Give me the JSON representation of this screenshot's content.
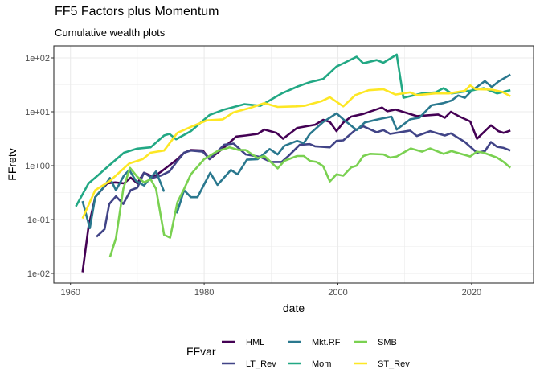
{
  "chart_data": {
    "type": "line",
    "title": "FF5 Factors plus Momentum",
    "subtitle": "Cumulative wealth plots",
    "xlabel": "date",
    "ylabel": "FFretv",
    "x_scale": "date",
    "y_scale": "log10",
    "xlim": [
      1957,
      2029.5
    ],
    "ylim": [
      0.0078,
      130
    ],
    "x_ticks": [
      1960,
      1980,
      2000,
      2020
    ],
    "x_tick_labels": [
      "1960",
      "1980",
      "2000",
      "2020"
    ],
    "y_ticks": [
      0.01,
      0.1,
      1,
      10,
      100
    ],
    "y_tick_labels": [
      "1e-02",
      "1e-01",
      "1e+00",
      "1e+01",
      "1e+02"
    ],
    "grid": true,
    "legend": {
      "title": "FFvar",
      "placement": "bottom"
    },
    "series": [
      {
        "name": "HML",
        "color": "#440154",
        "points": [
          [
            1961.8,
            0.0105
          ],
          [
            1962.7,
            0.074
          ],
          [
            1963.7,
            0.26
          ],
          [
            1965.5,
            0.47
          ],
          [
            1966.7,
            0.49
          ],
          [
            1968,
            0.47
          ],
          [
            1969,
            0.6
          ],
          [
            1970,
            0.47
          ],
          [
            1971,
            0.74
          ],
          [
            1972.4,
            0.62
          ],
          [
            1973.6,
            0.78
          ],
          [
            1974.4,
            0.93
          ],
          [
            1976,
            1.32
          ],
          [
            1977,
            1.74
          ],
          [
            1978,
            1.95
          ],
          [
            1979.8,
            1.91
          ],
          [
            1980.8,
            1.32
          ],
          [
            1982.8,
            2.09
          ],
          [
            1984.8,
            3.47
          ],
          [
            1986.2,
            3.63
          ],
          [
            1988,
            3.89
          ],
          [
            1989,
            4.68
          ],
          [
            1990.8,
            4.07
          ],
          [
            1991.8,
            3.16
          ],
          [
            1993.9,
            5.01
          ],
          [
            1996.6,
            5.75
          ],
          [
            1997.8,
            7.08
          ],
          [
            1998.8,
            6.46
          ],
          [
            1999.8,
            4.37
          ],
          [
            2000.8,
            6.31
          ],
          [
            2002,
            8.13
          ],
          [
            2003.8,
            9.12
          ],
          [
            2006.6,
            12.0
          ],
          [
            2007.4,
            10.2
          ],
          [
            2008.6,
            11.0
          ],
          [
            2011.8,
            8.32
          ],
          [
            2015,
            8.91
          ],
          [
            2016,
            7.76
          ],
          [
            2016.9,
            10
          ],
          [
            2018.2,
            8.13
          ],
          [
            2019.8,
            6.61
          ],
          [
            2020.8,
            3.16
          ],
          [
            2022.9,
            5.62
          ],
          [
            2024,
            4.37
          ],
          [
            2024.8,
            4.07
          ],
          [
            2025.8,
            4.47
          ]
        ]
      },
      {
        "name": "LT_Rev",
        "color": "#414487",
        "points": [
          [
            1963.9,
            0.048
          ],
          [
            1965.1,
            0.066
          ],
          [
            1965.8,
            0.195
          ],
          [
            1966.8,
            0.27
          ],
          [
            1967.9,
            0.195
          ],
          [
            1969,
            0.35
          ],
          [
            1970,
            0.39
          ],
          [
            1971,
            0.74
          ],
          [
            1972.2,
            0.59
          ],
          [
            1973.6,
            0.66
          ],
          [
            1974.8,
            0.78
          ],
          [
            1976,
            1.23
          ],
          [
            1977,
            1.74
          ],
          [
            1978,
            1.91
          ],
          [
            1979.8,
            1.82
          ],
          [
            1980.8,
            1.32
          ],
          [
            1983,
            2.45
          ],
          [
            1984.4,
            2.57
          ],
          [
            1986.2,
            1.62
          ],
          [
            1988.4,
            1.45
          ],
          [
            1990,
            1.17
          ],
          [
            1991.6,
            1.17
          ],
          [
            1992.7,
            1.55
          ],
          [
            1994.3,
            2.45
          ],
          [
            1995.8,
            2.51
          ],
          [
            1996.6,
            2.29
          ],
          [
            1998.8,
            2.19
          ],
          [
            1999.8,
            2.88
          ],
          [
            2000.8,
            2.95
          ],
          [
            2002.6,
            4.57
          ],
          [
            2003.8,
            5.37
          ],
          [
            2005.8,
            4.17
          ],
          [
            2006.8,
            4.57
          ],
          [
            2007.8,
            3.89
          ],
          [
            2010.8,
            4.47
          ],
          [
            2011.8,
            3.55
          ],
          [
            2013.8,
            4.37
          ],
          [
            2016,
            3.63
          ],
          [
            2016.9,
            3.98
          ],
          [
            2018.2,
            3.16
          ],
          [
            2019,
            2.75
          ],
          [
            2020.8,
            1.74
          ],
          [
            2022,
            1.86
          ],
          [
            2022.9,
            2.75
          ],
          [
            2023.8,
            2.24
          ],
          [
            2024.8,
            2.14
          ],
          [
            2025.8,
            1.91
          ]
        ]
      },
      {
        "name": "Mkt.RF",
        "color": "#2A788E",
        "points": [
          [
            1961.8,
            0.22
          ],
          [
            1962.9,
            0.069
          ],
          [
            1963.7,
            0.26
          ],
          [
            1964.9,
            0.39
          ],
          [
            1965.9,
            0.59
          ],
          [
            1966.8,
            0.35
          ],
          [
            1968,
            0.66
          ],
          [
            1968.8,
            0.83
          ],
          [
            1969.8,
            0.52
          ],
          [
            1971,
            0.43
          ],
          [
            1972.8,
            0.78
          ],
          [
            1974,
            0.33
          ],
          [
            null,
            null
          ],
          [
            1975.9,
            0.13
          ],
          [
            1977,
            0.35
          ],
          [
            1978,
            0.26
          ],
          [
            1979,
            0.26
          ],
          [
            1980.9,
            0.74
          ],
          [
            1982,
            0.44
          ],
          [
            1984,
            0.83
          ],
          [
            1985,
            0.69
          ],
          [
            1986.4,
            1.29
          ],
          [
            1988,
            1.32
          ],
          [
            1989.8,
            2.04
          ],
          [
            1991,
            1.62
          ],
          [
            1992,
            2.34
          ],
          [
            1993.9,
            2.88
          ],
          [
            1994.9,
            2.63
          ],
          [
            1995.8,
            3.89
          ],
          [
            1997.8,
            6.46
          ],
          [
            1999.8,
            9.33
          ],
          [
            2000.8,
            7.24
          ],
          [
            2002.8,
            4.57
          ],
          [
            2004,
            6.31
          ],
          [
            2006,
            7.24
          ],
          [
            2008,
            8.13
          ],
          [
            2008.8,
            4.68
          ],
          [
            2010.8,
            7.24
          ],
          [
            2012.2,
            7.76
          ],
          [
            2014,
            13.2
          ],
          [
            2015.8,
            14.5
          ],
          [
            2017,
            16.2
          ],
          [
            2018,
            20.0
          ],
          [
            2019,
            18.2
          ],
          [
            2020,
            24.5
          ],
          [
            2022,
            37.2
          ],
          [
            2023,
            28.8
          ],
          [
            2024,
            36.3
          ],
          [
            2025.8,
            49.0
          ]
        ]
      },
      {
        "name": "Mom",
        "color": "#22A884",
        "points": [
          [
            1960.8,
            0.175
          ],
          [
            1962.7,
            0.47
          ],
          [
            1964.1,
            0.66
          ],
          [
            1965.9,
            1.04
          ],
          [
            1968,
            1.74
          ],
          [
            1970,
            2.07
          ],
          [
            1972,
            2.19
          ],
          [
            1974,
            3.63
          ],
          [
            1974.8,
            3.89
          ],
          [
            1975.8,
            3.09
          ],
          [
            1978,
            4.37
          ],
          [
            1980.8,
            8.71
          ],
          [
            1983,
            11.0
          ],
          [
            1986,
            13.8
          ],
          [
            1988.4,
            12.9
          ],
          [
            1991.6,
            21.9
          ],
          [
            1994,
            29.5
          ],
          [
            1995.8,
            35.5
          ],
          [
            1997.8,
            40.7
          ],
          [
            1999.8,
            69.2
          ],
          [
            2001,
            81.3
          ],
          [
            2002.8,
            105
          ],
          [
            2003.8,
            79.4
          ],
          [
            2005.8,
            91.2
          ],
          [
            2006.8,
            81.3
          ],
          [
            2008.8,
            115
          ],
          [
            2009.8,
            18.2
          ],
          [
            2012.6,
            21.9
          ],
          [
            2014.6,
            22.9
          ],
          [
            2015.8,
            27.5
          ],
          [
            2017,
            21.9
          ],
          [
            2019.8,
            24.5
          ],
          [
            2021.8,
            27.5
          ],
          [
            2023.8,
            21.9
          ],
          [
            2025.8,
            25.1
          ]
        ]
      },
      {
        "name": "SMB",
        "color": "#7AD151",
        "points": [
          [
            1965.9,
            0.02
          ],
          [
            1966.8,
            0.045
          ],
          [
            1967.9,
            0.37
          ],
          [
            1968.9,
            0.91
          ],
          [
            1970,
            0.62
          ],
          [
            1971,
            0.49
          ],
          [
            1972,
            0.56
          ],
          [
            1972.8,
            0.37
          ],
          [
            1974,
            0.052
          ],
          [
            1974.9,
            0.046
          ],
          [
            1976,
            0.21
          ],
          [
            1977,
            0.37
          ],
          [
            1978,
            0.69
          ],
          [
            1980,
            1.32
          ],
          [
            1982,
            1.86
          ],
          [
            1983.8,
            2.19
          ],
          [
            1985.2,
            1.95
          ],
          [
            1986.2,
            1.95
          ],
          [
            1988,
            1.38
          ],
          [
            1989,
            1.51
          ],
          [
            1991,
            0.89
          ],
          [
            1992,
            1.23
          ],
          [
            1993.9,
            1.51
          ],
          [
            1994.9,
            1.51
          ],
          [
            1995.8,
            1.23
          ],
          [
            1996.8,
            1.17
          ],
          [
            1997.8,
            0.98
          ],
          [
            1998.8,
            0.51
          ],
          [
            1999.8,
            0.69
          ],
          [
            2000.8,
            0.65
          ],
          [
            2002,
            0.93
          ],
          [
            2002.8,
            1.0
          ],
          [
            2003.8,
            1.51
          ],
          [
            2004.8,
            1.66
          ],
          [
            2006.8,
            1.62
          ],
          [
            2007.8,
            1.41
          ],
          [
            2008.8,
            1.48
          ],
          [
            2009.8,
            1.74
          ],
          [
            2010.9,
            2.09
          ],
          [
            2012.6,
            1.82
          ],
          [
            2013.8,
            2.09
          ],
          [
            2015.8,
            1.66
          ],
          [
            2017,
            1.86
          ],
          [
            2019.8,
            1.48
          ],
          [
            2020.8,
            1.82
          ],
          [
            2021.8,
            1.74
          ],
          [
            2023.8,
            1.41
          ],
          [
            2024.8,
            1.17
          ],
          [
            2025.8,
            0.91
          ]
        ]
      },
      {
        "name": "ST_Rev",
        "color": "#FDE725",
        "points": [
          [
            1961.8,
            0.105
          ],
          [
            1963.7,
            0.35
          ],
          [
            1965.9,
            0.52
          ],
          [
            1968.8,
            1.1
          ],
          [
            1970.8,
            1.32
          ],
          [
            1972,
            1.74
          ],
          [
            1974,
            1.91
          ],
          [
            1976,
            4.07
          ],
          [
            1978.4,
            5.5
          ],
          [
            1980.4,
            6.92
          ],
          [
            1982.8,
            7.24
          ],
          [
            1984.4,
            9.77
          ],
          [
            1986.8,
            11.7
          ],
          [
            1989,
            14.5
          ],
          [
            1991,
            12.3
          ],
          [
            1993.7,
            12.6
          ],
          [
            1995,
            12.9
          ],
          [
            1997.6,
            15.8
          ],
          [
            1998.8,
            18.6
          ],
          [
            2000.8,
            12.6
          ],
          [
            2002.6,
            20.4
          ],
          [
            2004.6,
            25.1
          ],
          [
            2006.8,
            26.3
          ],
          [
            2008.6,
            20.9
          ],
          [
            2010.8,
            22.9
          ],
          [
            2011.8,
            20.4
          ],
          [
            2014.6,
            21.9
          ],
          [
            2016.6,
            21.9
          ],
          [
            2019,
            24.5
          ],
          [
            2019.8,
            30.9
          ],
          [
            2020.6,
            26.3
          ],
          [
            2023,
            25.7
          ],
          [
            2024.6,
            23.4
          ],
          [
            2025.8,
            19.5
          ]
        ]
      }
    ]
  }
}
